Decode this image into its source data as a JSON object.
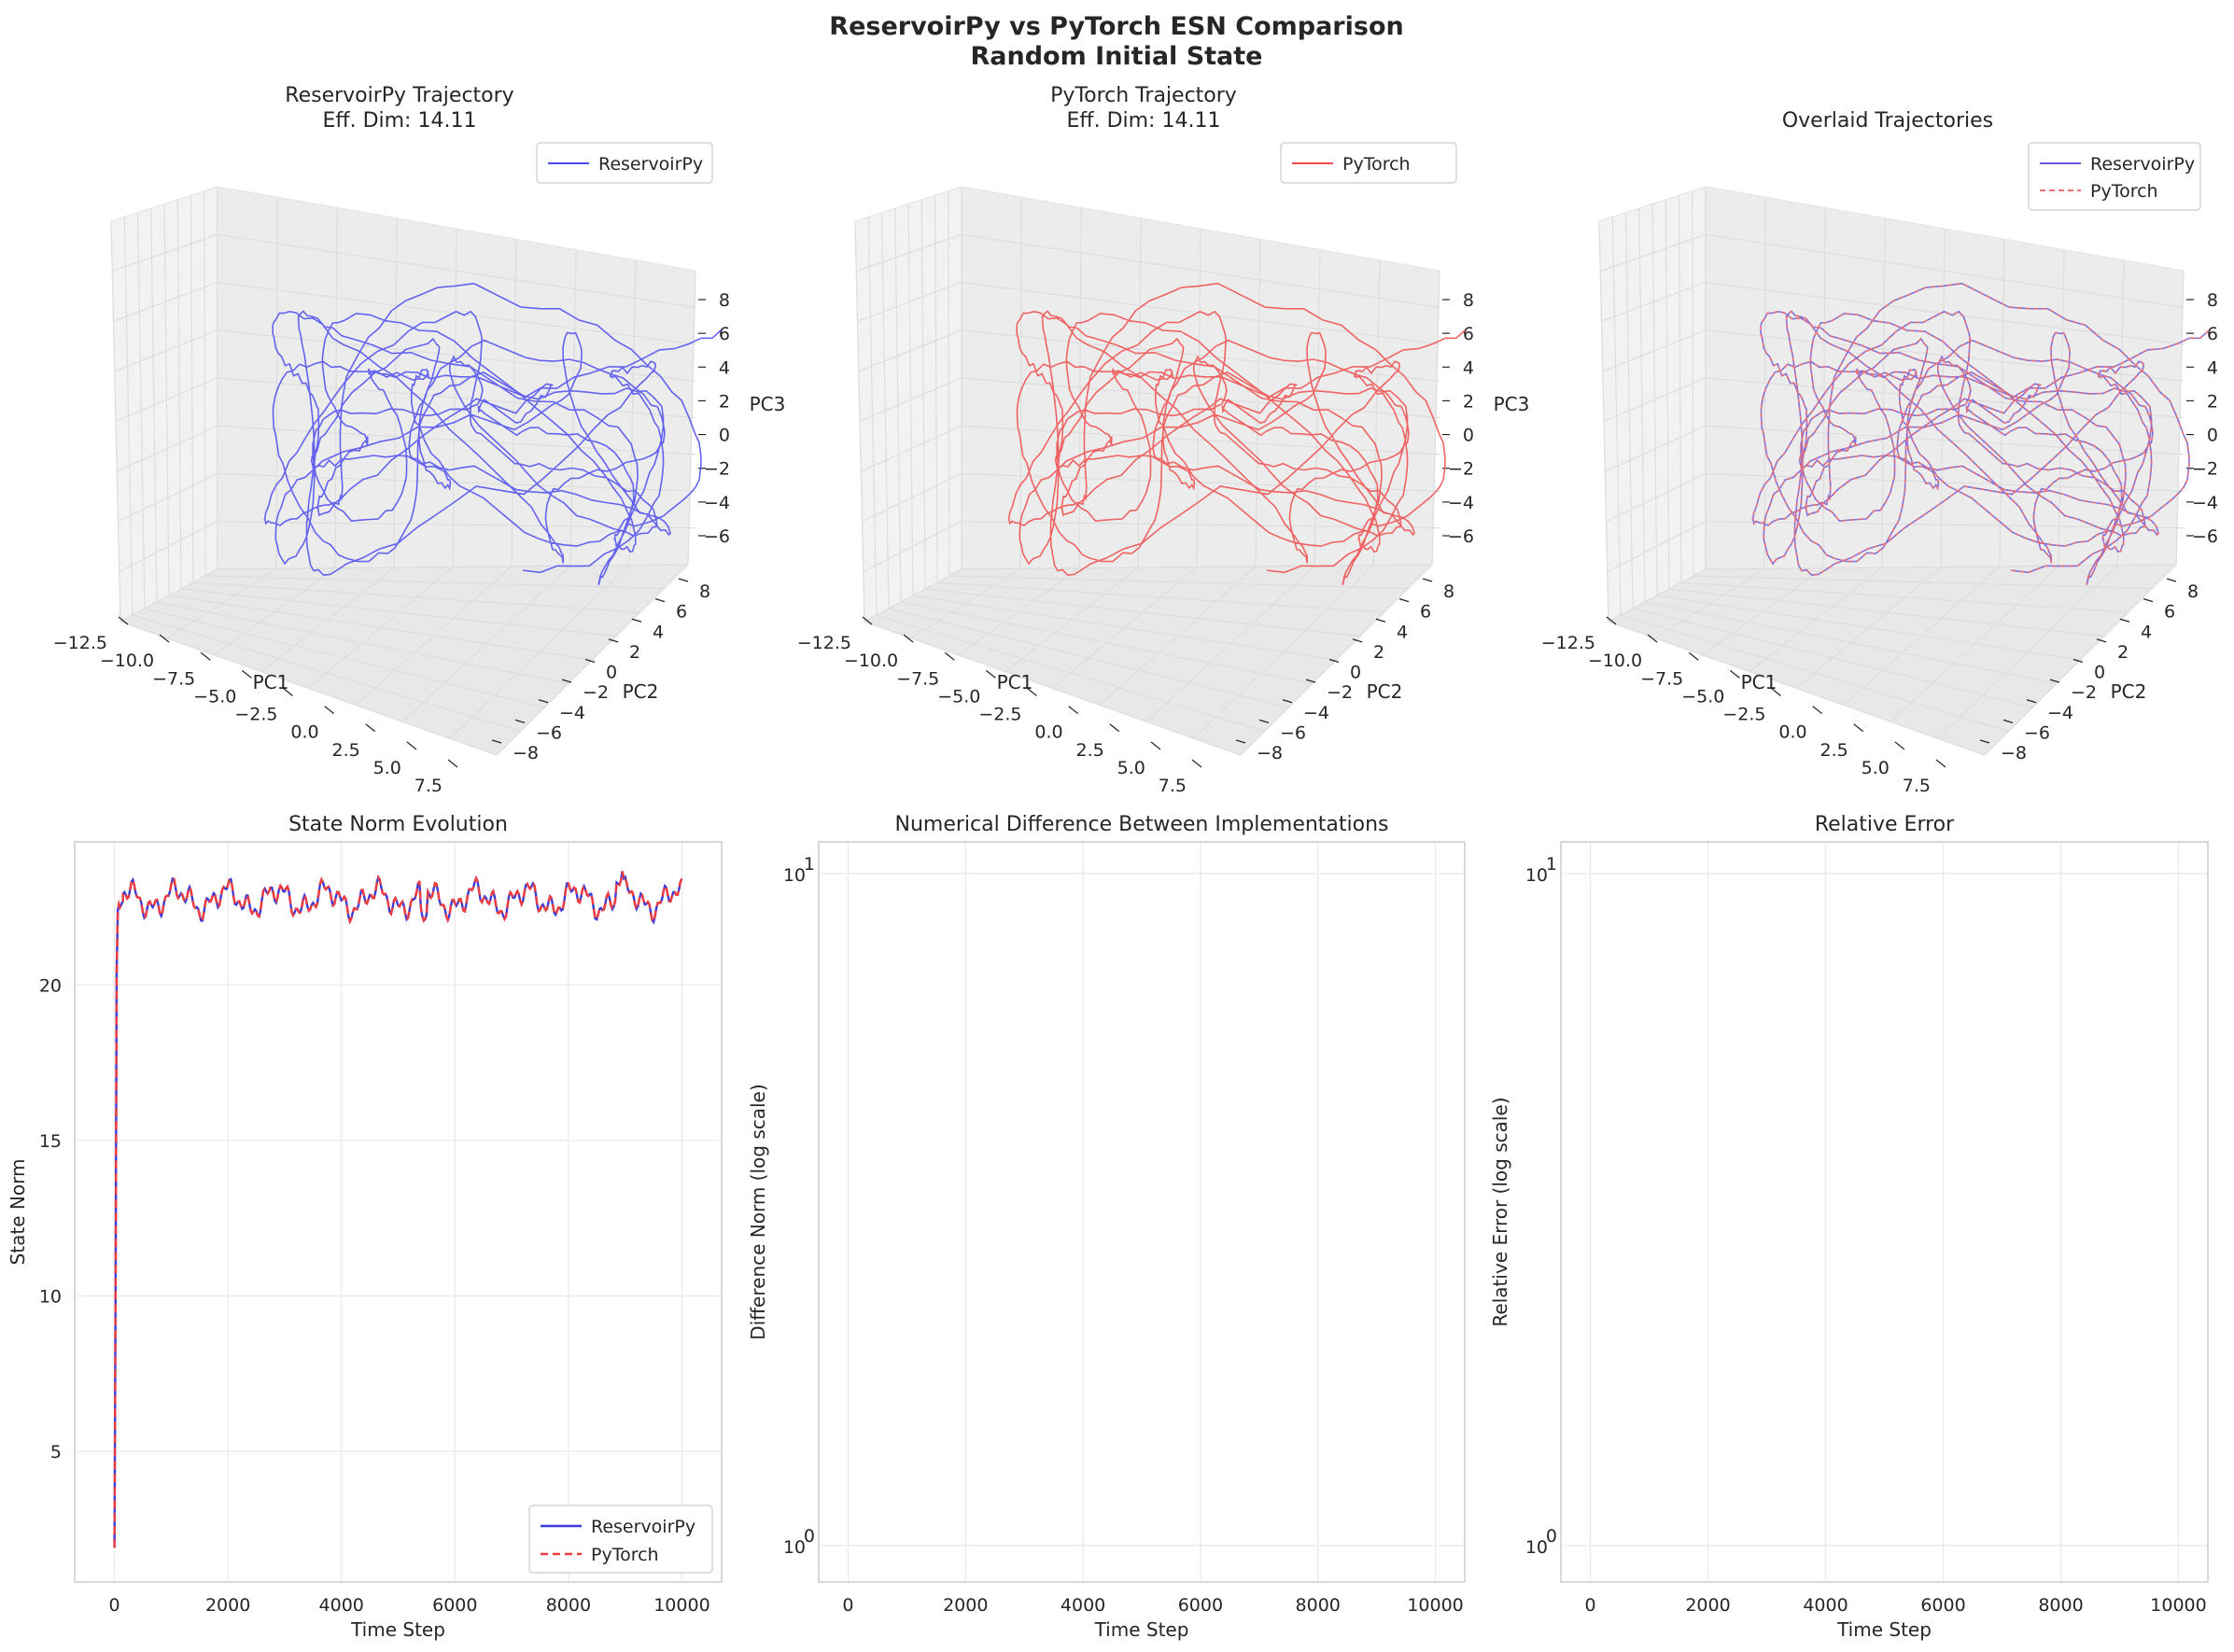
{
  "figure": {
    "title_line1": "ReservoirPy vs PyTorch ESN Comparison",
    "title_line2": "Random Initial State"
  },
  "chart_data": [
    {
      "type": "line3d",
      "title_line1": "ReservoirPy Trajectory",
      "title_line2": "Eff. Dim: 14.11",
      "xlabel": "PC1",
      "ylabel": "PC2",
      "zlabel": "PC3",
      "xticks": [
        "−12.5",
        "−10.0",
        "−7.5",
        "−5.0",
        "−2.5",
        "0.0",
        "2.5",
        "5.0",
        "7.5"
      ],
      "yticks": [
        "−8",
        "−6",
        "−4",
        "−2",
        "0",
        "2",
        "4",
        "6",
        "8"
      ],
      "zticks": [
        "−6",
        "−4",
        "−2",
        "0",
        "2",
        "4",
        "6",
        "8"
      ],
      "xlim": [
        -12.5,
        7.5
      ],
      "ylim": [
        -8,
        8
      ],
      "zlim": [
        -6,
        8
      ],
      "grid": true,
      "legend_position": "upper right",
      "series": [
        {
          "name": "ReservoirPy",
          "color": "#4b4bf0",
          "style": "solid"
        }
      ]
    },
    {
      "type": "line3d",
      "title_line1": "PyTorch Trajectory",
      "title_line2": "Eff. Dim: 14.11",
      "xlabel": "PC1",
      "ylabel": "PC2",
      "zlabel": "PC3",
      "xticks": [
        "−12.5",
        "−10.0",
        "−7.5",
        "−5.0",
        "−2.5",
        "0.0",
        "2.5",
        "5.0",
        "7.5"
      ],
      "yticks": [
        "−8",
        "−6",
        "−4",
        "−2",
        "0",
        "2",
        "4",
        "6",
        "8"
      ],
      "zticks": [
        "−6",
        "−4",
        "−2",
        "0",
        "2",
        "4",
        "6",
        "8"
      ],
      "xlim": [
        -12.5,
        7.5
      ],
      "ylim": [
        -8,
        8
      ],
      "zlim": [
        -6,
        8
      ],
      "grid": true,
      "legend_position": "upper right",
      "series": [
        {
          "name": "PyTorch",
          "color": "#f04b4b",
          "style": "solid"
        }
      ]
    },
    {
      "type": "line3d",
      "title_line1": "Overlaid Trajectories",
      "title_line2": "",
      "xlabel": "PC1",
      "ylabel": "PC2",
      "zlabel": "",
      "xticks": [
        "−12.5",
        "−10.0",
        "−7.5",
        "−5.0",
        "−2.5",
        "0.0",
        "2.5",
        "5.0",
        "7.5"
      ],
      "yticks": [
        "−8",
        "−6",
        "−4",
        "−2",
        "0",
        "2",
        "4",
        "6",
        "8"
      ],
      "zticks": [
        "−6",
        "−4",
        "−2",
        "0",
        "2",
        "4",
        "6",
        "8"
      ],
      "xlim": [
        -12.5,
        7.5
      ],
      "ylim": [
        -8,
        8
      ],
      "zlim": [
        -6,
        8
      ],
      "grid": true,
      "legend_position": "upper right",
      "series": [
        {
          "name": "ReservoirPy",
          "color": "#6a5ae0",
          "style": "solid"
        },
        {
          "name": "PyTorch",
          "color": "#f07070",
          "style": "dashed"
        }
      ]
    },
    {
      "type": "line",
      "title": "State Norm Evolution",
      "xlabel": "Time Step",
      "ylabel": "State Norm",
      "xlim": [
        -700,
        10700
      ],
      "ylim": [
        0.8,
        24.6
      ],
      "xticks": [
        "0",
        "2000",
        "4000",
        "6000",
        "8000",
        "10000"
      ],
      "xtick_values": [
        0,
        2000,
        4000,
        6000,
        8000,
        10000
      ],
      "yticks": [
        "5",
        "10",
        "15",
        "20"
      ],
      "ytick_values": [
        5,
        10,
        15,
        20
      ],
      "grid": true,
      "legend_position": "lower right",
      "series": [
        {
          "name": "ReservoirPy",
          "color": "#3c3cdc",
          "style": "solid",
          "x": [
            0,
            20,
            40,
            60,
            80,
            100,
            150
          ],
          "y": [
            1.9,
            10.0,
            20.5,
            22.4,
            22.6,
            22.5,
            22.7
          ]
        },
        {
          "name": "PyTorch",
          "color": "#f03c3c",
          "style": "dashed",
          "x": [
            0,
            20,
            40,
            60,
            80,
            100,
            150
          ],
          "y": [
            1.9,
            10.0,
            20.5,
            22.4,
            22.6,
            22.5,
            22.7
          ]
        }
      ]
    },
    {
      "type": "line",
      "title": "Numerical Difference Between Implementations",
      "xlabel": "Time Step",
      "ylabel": "Difference Norm (log scale)",
      "yscale": "log",
      "xlim": [
        -500,
        10500
      ],
      "xticks": [
        "0",
        "2000",
        "4000",
        "6000",
        "8000",
        "10000"
      ],
      "xtick_values": [
        0,
        2000,
        4000,
        6000,
        8000,
        10000
      ],
      "yticks_base": [
        "10",
        "10"
      ],
      "yticks_exp": [
        "0",
        "1"
      ],
      "grid": true,
      "series": []
    },
    {
      "type": "line",
      "title": "Relative Error",
      "xlabel": "Time Step",
      "ylabel": "Relative Error (log scale)",
      "yscale": "log",
      "xlim": [
        -500,
        10500
      ],
      "xticks": [
        "0",
        "2000",
        "4000",
        "6000",
        "8000",
        "10000"
      ],
      "xtick_values": [
        0,
        2000,
        4000,
        6000,
        8000,
        10000
      ],
      "yticks_base": [
        "10",
        "10"
      ],
      "yticks_exp": [
        "0",
        "1"
      ],
      "grid": true,
      "series": []
    }
  ]
}
